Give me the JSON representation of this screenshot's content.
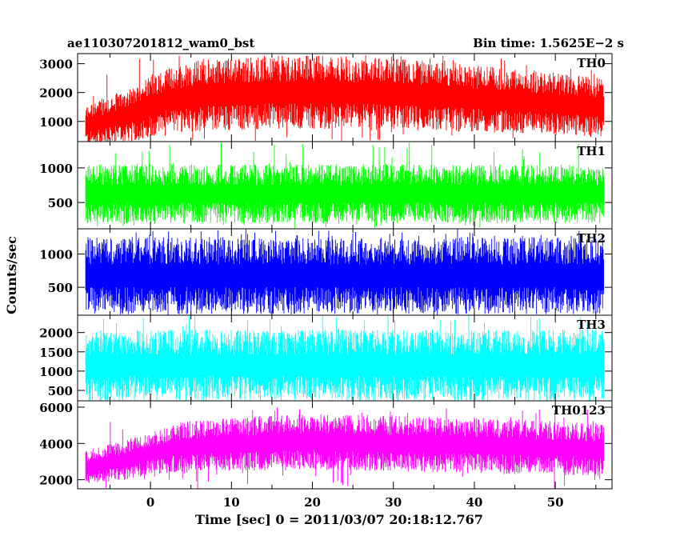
{
  "header": {
    "title": "ae110307201812_wam0_bst",
    "bin_time": "Bin time: 1.5625E−2 s"
  },
  "chart_data": {
    "type": "line",
    "xlabel": "Time [sec] 0 = 2011/03/07 20:18:12.767",
    "ylabel": "Counts/sec",
    "xlim": [
      -9,
      57
    ],
    "x_ticks": [
      0,
      10,
      20,
      30,
      40,
      50
    ],
    "x_range_data": [
      -8,
      56
    ],
    "panels": [
      {
        "name": "TH0",
        "color": "#ff0000",
        "ylim": [
          300,
          3350
        ],
        "ticks": [
          1000,
          2000,
          3000
        ],
        "envelope": [
          [
            -8,
            400,
            1300
          ],
          [
            -6,
            450,
            1500
          ],
          [
            -4,
            550,
            1700
          ],
          [
            -2,
            650,
            1950
          ],
          [
            0,
            850,
            2200
          ],
          [
            2,
            1000,
            2450
          ],
          [
            4,
            1050,
            2600
          ],
          [
            6,
            1100,
            2700
          ],
          [
            10,
            1150,
            2800
          ],
          [
            20,
            1200,
            2850
          ],
          [
            30,
            1150,
            2750
          ],
          [
            40,
            1050,
            2550
          ],
          [
            50,
            900,
            2300
          ],
          [
            56,
            800,
            2150
          ]
        ],
        "spike_max": 3300
      },
      {
        "name": "TH1",
        "color": "#00ff00",
        "ylim": [
          120,
          1380
        ],
        "ticks": [
          500,
          1000
        ],
        "envelope": [
          [
            -8,
            350,
            900
          ],
          [
            56,
            350,
            900
          ]
        ],
        "spike_max": 1380
      },
      {
        "name": "TH2",
        "color": "#0000ff",
        "ylim": [
          80,
          1380
        ],
        "ticks": [
          500,
          1000
        ],
        "envelope": [
          [
            -8,
            300,
            1050
          ],
          [
            56,
            300,
            1050
          ]
        ],
        "spike_max": 1380
      },
      {
        "name": "TH3",
        "color": "#00ffff",
        "ylim": [
          230,
          2450
        ],
        "ticks": [
          500,
          1000,
          1500,
          2000
        ],
        "envelope": [
          [
            -8,
            550,
            1750
          ],
          [
            56,
            550,
            1750
          ]
        ],
        "spike_max": 2450
      },
      {
        "name": "TH0123",
        "color": "#ff00ff",
        "ylim": [
          1500,
          6350
        ],
        "ticks": [
          2000,
          4000,
          6000
        ],
        "envelope": [
          [
            -8,
            2100,
            3300
          ],
          [
            -4,
            2300,
            3700
          ],
          [
            0,
            2700,
            4200
          ],
          [
            4,
            2900,
            4700
          ],
          [
            10,
            3000,
            4900
          ],
          [
            20,
            3100,
            5100
          ],
          [
            30,
            3000,
            5000
          ],
          [
            40,
            2900,
            4900
          ],
          [
            50,
            2800,
            4700
          ],
          [
            56,
            2700,
            4600
          ]
        ],
        "spike_max": 6000
      }
    ]
  }
}
